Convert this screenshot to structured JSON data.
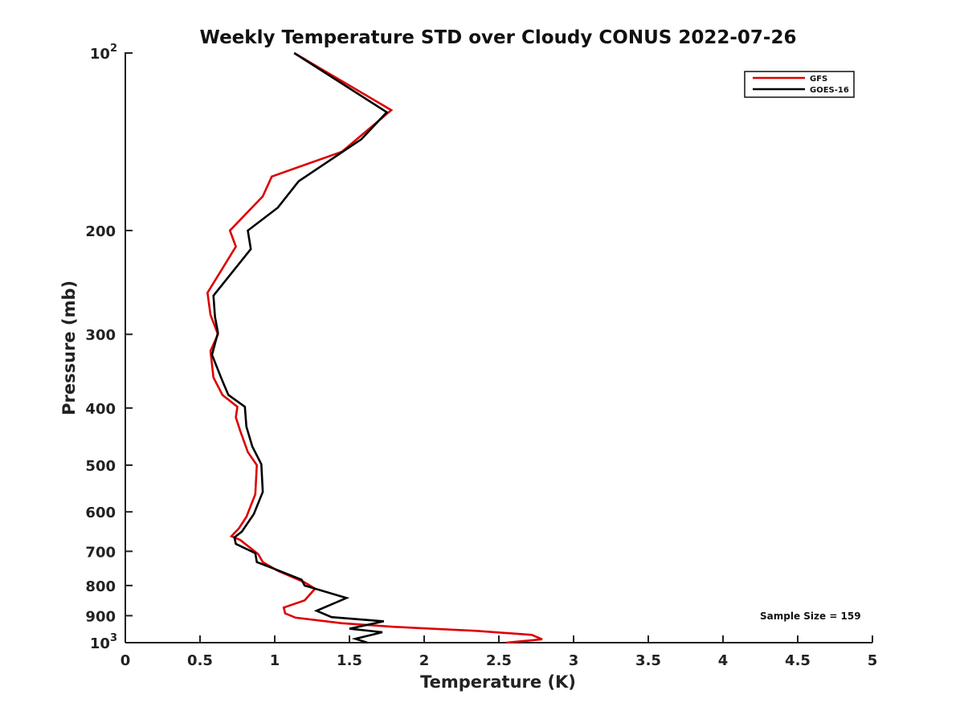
{
  "chart_data": {
    "type": "line",
    "title": "Weekly Temperature STD over Cloudy CONUS 2022-07-26",
    "xlabel": "Temperature (K)",
    "ylabel": "Pressure (mb)",
    "xlim": [
      0,
      5
    ],
    "ylim": [
      100,
      1000
    ],
    "y_scale": "log",
    "y_reversed": true,
    "grid": false,
    "legend_position": "top-right",
    "x_ticks": [
      "0",
      "0.5",
      "1",
      "1.5",
      "2",
      "2.5",
      "3",
      "3.5",
      "4",
      "4.5",
      "5"
    ],
    "y_ticks": [
      {
        "value": 100,
        "base": "10",
        "exp": "2"
      },
      {
        "value": 200,
        "label": "200"
      },
      {
        "value": 300,
        "label": "300"
      },
      {
        "value": 400,
        "label": "400"
      },
      {
        "value": 500,
        "label": "500"
      },
      {
        "value": 600,
        "label": "600"
      },
      {
        "value": 700,
        "label": "700"
      },
      {
        "value": 800,
        "label": "800"
      },
      {
        "value": 900,
        "label": "900"
      },
      {
        "value": 1000,
        "base": "10",
        "exp": "3"
      }
    ],
    "annotation": "Sample Size = 159",
    "series": [
      {
        "name": "GFS",
        "color": "#dd0000",
        "points": [
          [
            1.13,
            100
          ],
          [
            1.78,
            125
          ],
          [
            1.45,
            147
          ],
          [
            0.98,
            162
          ],
          [
            0.92,
            175
          ],
          [
            0.7,
            200
          ],
          [
            0.74,
            213
          ],
          [
            0.55,
            255
          ],
          [
            0.57,
            278
          ],
          [
            0.62,
            300
          ],
          [
            0.57,
            320
          ],
          [
            0.59,
            355
          ],
          [
            0.65,
            380
          ],
          [
            0.75,
            398
          ],
          [
            0.74,
            415
          ],
          [
            0.77,
            438
          ],
          [
            0.82,
            475
          ],
          [
            0.88,
            500
          ],
          [
            0.87,
            560
          ],
          [
            0.81,
            612
          ],
          [
            0.76,
            640
          ],
          [
            0.71,
            660
          ],
          [
            0.77,
            670
          ],
          [
            0.89,
            708
          ],
          [
            0.92,
            730
          ],
          [
            1.02,
            755
          ],
          [
            1.2,
            790
          ],
          [
            1.27,
            810
          ],
          [
            1.2,
            848
          ],
          [
            1.06,
            872
          ],
          [
            1.07,
            892
          ],
          [
            1.14,
            907
          ],
          [
            1.45,
            927
          ],
          [
            1.8,
            940
          ],
          [
            2.35,
            955
          ],
          [
            2.72,
            970
          ],
          [
            2.79,
            987
          ],
          [
            2.55,
            1000
          ]
        ]
      },
      {
        "name": "GOES-16",
        "color": "#000000",
        "points": [
          [
            1.13,
            100
          ],
          [
            1.75,
            126
          ],
          [
            1.58,
            140
          ],
          [
            1.16,
            165
          ],
          [
            1.02,
            183
          ],
          [
            0.82,
            200
          ],
          [
            0.84,
            215
          ],
          [
            0.59,
            258
          ],
          [
            0.6,
            280
          ],
          [
            0.62,
            298
          ],
          [
            0.58,
            325
          ],
          [
            0.65,
            360
          ],
          [
            0.69,
            380
          ],
          [
            0.8,
            398
          ],
          [
            0.81,
            430
          ],
          [
            0.85,
            465
          ],
          [
            0.91,
            498
          ],
          [
            0.92,
            555
          ],
          [
            0.86,
            605
          ],
          [
            0.78,
            648
          ],
          [
            0.73,
            663
          ],
          [
            0.74,
            680
          ],
          [
            0.87,
            705
          ],
          [
            0.88,
            730
          ],
          [
            1.0,
            750
          ],
          [
            1.18,
            782
          ],
          [
            1.2,
            800
          ],
          [
            1.48,
            840
          ],
          [
            1.28,
            883
          ],
          [
            1.38,
            905
          ],
          [
            1.73,
            920
          ],
          [
            1.5,
            947
          ],
          [
            1.72,
            960
          ],
          [
            1.54,
            985
          ],
          [
            1.62,
            1000
          ]
        ]
      }
    ]
  }
}
